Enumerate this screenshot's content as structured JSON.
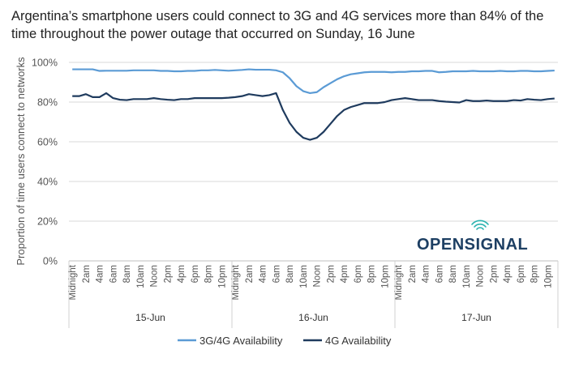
{
  "chart_data": {
    "type": "line",
    "title": "Argentina’s smartphone users could connect to 3G and 4G services more than 84% of the time throughout the power outage that occurred on Sunday, 16 June",
    "ylabel": "Proportion of time users connect to networks",
    "xlabel": "",
    "ylim": [
      0,
      100
    ],
    "y_ticks": [
      "0%",
      "20%",
      "40%",
      "60%",
      "80%",
      "100%"
    ],
    "hour_labels": [
      "Midnight",
      "2am",
      "4am",
      "6am",
      "8am",
      "10am",
      "Noon",
      "2pm",
      "4pm",
      "6pm",
      "8pm",
      "10pm"
    ],
    "days": [
      "15-Jun",
      "16-Jun",
      "17-Jun"
    ],
    "grid": true,
    "legend_position": "bottom",
    "series": [
      {
        "name": "3G/4G Availability",
        "color": "#5b9bd5",
        "values": [
          96.5,
          96.5,
          96.5,
          96.5,
          95.7,
          95.8,
          95.8,
          95.8,
          95.8,
          96,
          96,
          96,
          96,
          95.7,
          95.7,
          95.5,
          95.5,
          95.7,
          95.7,
          96,
          96,
          96.2,
          96,
          95.8,
          96,
          96.2,
          96.5,
          96.3,
          96.3,
          96.3,
          96,
          95,
          92,
          88,
          85.5,
          84.5,
          85,
          87.5,
          89.5,
          91.5,
          93,
          94,
          94.5,
          95,
          95.2,
          95.2,
          95.2,
          95,
          95.2,
          95.2,
          95.5,
          95.5,
          95.7,
          95.7,
          95,
          95.2,
          95.5,
          95.5,
          95.5,
          95.7,
          95.5,
          95.5,
          95.5,
          95.7,
          95.5,
          95.5,
          95.7,
          95.7,
          95.5,
          95.5,
          95.7,
          95.9
        ]
      },
      {
        "name": "4G Availability",
        "color": "#1f3b5e",
        "values": [
          83,
          83,
          84,
          82.5,
          82.5,
          84.5,
          82,
          81.2,
          81,
          81.5,
          81.5,
          81.5,
          82,
          81.5,
          81.2,
          81,
          81.5,
          81.5,
          82,
          82,
          82,
          82,
          82,
          82.2,
          82.5,
          83,
          84,
          83.5,
          83,
          83.5,
          84.5,
          76,
          69.5,
          65,
          62,
          61,
          62,
          65,
          69,
          73,
          76,
          77.5,
          78.5,
          79.5,
          79.5,
          79.5,
          80,
          81,
          81.5,
          82,
          81.5,
          81,
          81,
          81,
          80.5,
          80.2,
          80,
          79.8,
          81,
          80.5,
          80.5,
          80.8,
          80.5,
          80.5,
          80.5,
          81,
          80.8,
          81.5,
          81.2,
          81,
          81.5,
          81.8
        ]
      }
    ]
  },
  "brand": {
    "logo_text": "OPENSIGNAL"
  }
}
